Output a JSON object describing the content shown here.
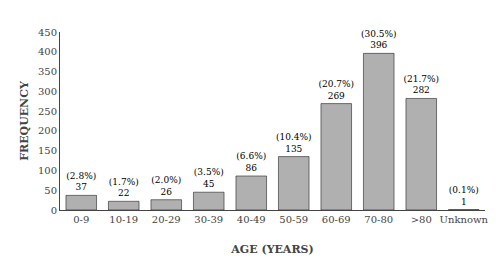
{
  "chart_data": {
    "type": "bar",
    "categories": [
      "0-9",
      "10-19",
      "20-29",
      "30-39",
      "40-49",
      "50-59",
      "60-69",
      "70-80",
      ">80",
      "Unknown"
    ],
    "values": [
      37,
      22,
      26,
      45,
      86,
      135,
      269,
      396,
      282,
      1
    ],
    "annotations": [
      "(2.8%)",
      "(1.7%)",
      "(2.0%)",
      "(3.5%)",
      "(6.6%)",
      "(10.4%)",
      "(20.7%)",
      "(30.5%)",
      "(21.7%)",
      "(0.1%)"
    ],
    "data_labels": true,
    "color": "#b0b0b0",
    "xlabel": "AGE (YEARS)",
    "ylabel": "FREQUENCY",
    "ylim": [
      0,
      450
    ],
    "yticks": [
      0,
      50,
      100,
      150,
      200,
      250,
      300,
      350,
      400,
      450
    ],
    "grid": false
  }
}
